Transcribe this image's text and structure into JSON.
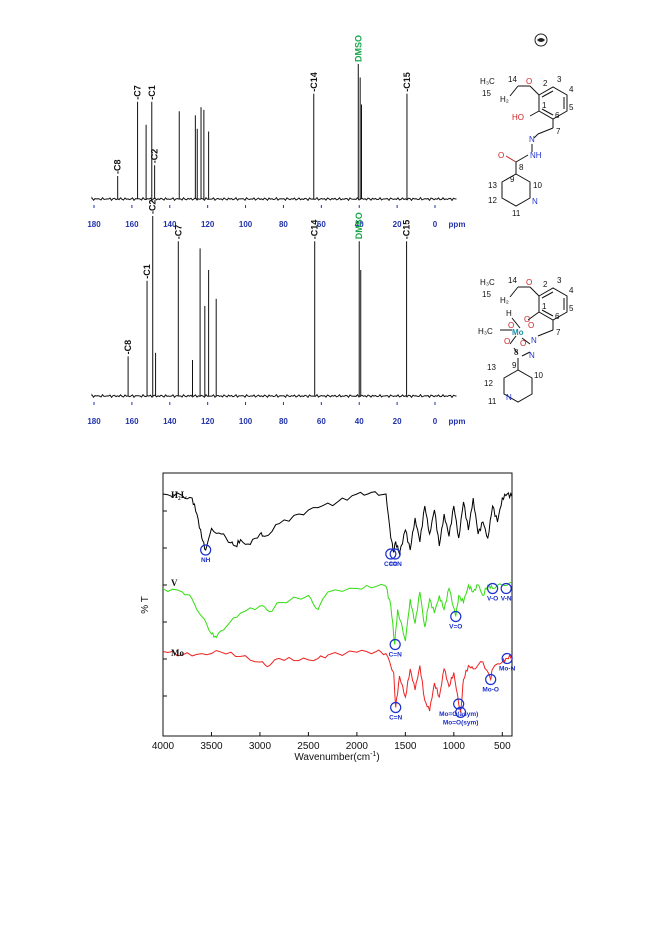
{
  "page": {
    "corner_icon": "journal-logo-icon"
  },
  "chart_data": [
    {
      "type": "line",
      "id": "nmr_ligand",
      "xlabel": "ppm",
      "xlim": [
        180,
        0
      ],
      "x_ticks": [
        "180",
        "160",
        "140",
        "120",
        "100",
        "80",
        "60",
        "40",
        "20",
        "0"
      ],
      "peaks": [
        {
          "ppm": 167.5,
          "h": 0.17,
          "label": "C8"
        },
        {
          "ppm": 157.0,
          "h": 0.72,
          "label": "C7"
        },
        {
          "ppm": 152.5,
          "h": 0.55,
          "label": ""
        },
        {
          "ppm": 149.5,
          "h": 0.72,
          "label": "C1"
        },
        {
          "ppm": 148.0,
          "h": 0.25,
          "label": "C2"
        },
        {
          "ppm": 135.0,
          "h": 0.65,
          "label": ""
        },
        {
          "ppm": 126.5,
          "h": 0.62,
          "label": ""
        },
        {
          "ppm": 125.5,
          "h": 0.52,
          "label": ""
        },
        {
          "ppm": 123.5,
          "h": 0.68,
          "label": ""
        },
        {
          "ppm": 122.0,
          "h": 0.66,
          "label": ""
        },
        {
          "ppm": 119.5,
          "h": 0.5,
          "label": ""
        },
        {
          "ppm": 64.0,
          "h": 0.78,
          "label": "C14"
        },
        {
          "ppm": 40.5,
          "h": 1.0,
          "label": "DMSO"
        },
        {
          "ppm": 39.5,
          "h": 0.9,
          "label": ""
        },
        {
          "ppm": 38.8,
          "h": 0.7,
          "label": ""
        },
        {
          "ppm": 14.8,
          "h": 0.78,
          "label": "C15"
        }
      ]
    },
    {
      "type": "line",
      "id": "nmr_complex",
      "xlabel": "ppm",
      "xlim": [
        180,
        0
      ],
      "x_ticks": [
        "180",
        "160",
        "140",
        "120",
        "100",
        "80",
        "60",
        "40",
        "20",
        "0"
      ],
      "peaks": [
        {
          "ppm": 162.0,
          "h": 0.22,
          "label": "C8"
        },
        {
          "ppm": 152.0,
          "h": 0.64,
          "label": "C1"
        },
        {
          "ppm": 149.0,
          "h": 1.0,
          "label": "C2"
        },
        {
          "ppm": 147.5,
          "h": 0.24,
          "label": ""
        },
        {
          "ppm": 135.5,
          "h": 0.86,
          "label": "C7"
        },
        {
          "ppm": 128.0,
          "h": 0.2,
          "label": ""
        },
        {
          "ppm": 124.0,
          "h": 0.82,
          "label": ""
        },
        {
          "ppm": 121.5,
          "h": 0.5,
          "label": ""
        },
        {
          "ppm": 119.5,
          "h": 0.7,
          "label": ""
        },
        {
          "ppm": 115.5,
          "h": 0.54,
          "label": ""
        },
        {
          "ppm": 63.5,
          "h": 0.86,
          "label": "C14"
        },
        {
          "ppm": 40.0,
          "h": 0.86,
          "label": "DMSO"
        },
        {
          "ppm": 39.2,
          "h": 0.7,
          "label": ""
        },
        {
          "ppm": 15.0,
          "h": 0.86,
          "label": "C15"
        }
      ]
    },
    {
      "type": "line",
      "id": "ir_spectra",
      "xlabel": "Wavenumber(cm",
      "xlabel_sup": "-1",
      "xlabel_end": ")",
      "ylabel": "% T",
      "xlim": [
        4000,
        400
      ],
      "x_ticks": [
        "4000",
        "3500",
        "3000",
        "2500",
        "2000",
        "1500",
        "1000",
        "500"
      ],
      "series": [
        {
          "name": "H₂L",
          "color": "#000000",
          "points": [
            [
              4000,
              0.05
            ],
            [
              3800,
              0.07
            ],
            [
              3700,
              0.1
            ],
            [
              3650,
              0.3
            ],
            [
              3600,
              0.6
            ],
            [
              3560,
              0.75
            ],
            [
              3500,
              0.48
            ],
            [
              3400,
              0.55
            ],
            [
              3300,
              0.66
            ],
            [
              3250,
              0.7
            ],
            [
              3200,
              0.62
            ],
            [
              3100,
              0.68
            ],
            [
              3000,
              0.55
            ],
            [
              2950,
              0.58
            ],
            [
              2800,
              0.42
            ],
            [
              2600,
              0.3
            ],
            [
              2400,
              0.22
            ],
            [
              2200,
              0.15
            ],
            [
              2000,
              0.05
            ],
            [
              1850,
              0.03
            ],
            [
              1700,
              0.05
            ],
            [
              1650,
              0.6
            ],
            [
              1620,
              0.78
            ],
            [
              1600,
              0.65
            ],
            [
              1560,
              0.8
            ],
            [
              1500,
              0.5
            ],
            [
              1450,
              0.75
            ],
            [
              1400,
              0.35
            ],
            [
              1350,
              0.65
            ],
            [
              1300,
              0.2
            ],
            [
              1250,
              0.55
            ],
            [
              1200,
              0.25
            ],
            [
              1150,
              0.7
            ],
            [
              1100,
              0.3
            ],
            [
              1050,
              0.58
            ],
            [
              1000,
              0.2
            ],
            [
              950,
              0.6
            ],
            [
              900,
              0.15
            ],
            [
              850,
              0.5
            ],
            [
              800,
              0.1
            ],
            [
              750,
              0.55
            ],
            [
              700,
              0.4
            ],
            [
              650,
              0.6
            ],
            [
              600,
              0.2
            ],
            [
              550,
              0.4
            ],
            [
              500,
              0.1
            ],
            [
              450,
              0.05
            ],
            [
              400,
              0.08
            ]
          ],
          "annotations": [
            {
              "label": "NH",
              "x": 3560,
              "y": 0.75
            },
            {
              "label": "C=O",
              "x": 1650,
              "y": 0.8
            },
            {
              "label": "C=N",
              "x": 1605,
              "y": 0.8
            }
          ]
        },
        {
          "name": "V",
          "color": "#33dd11",
          "points": [
            [
              4000,
              0.15
            ],
            [
              3800,
              0.2
            ],
            [
              3700,
              0.3
            ],
            [
              3600,
              0.55
            ],
            [
              3500,
              0.8
            ],
            [
              3450,
              0.85
            ],
            [
              3350,
              0.7
            ],
            [
              3200,
              0.5
            ],
            [
              3000,
              0.4
            ],
            [
              2900,
              0.48
            ],
            [
              2800,
              0.35
            ],
            [
              2500,
              0.25
            ],
            [
              2400,
              0.45
            ],
            [
              2300,
              0.2
            ],
            [
              2000,
              0.15
            ],
            [
              1800,
              0.12
            ],
            [
              1700,
              0.12
            ],
            [
              1650,
              0.4
            ],
            [
              1610,
              0.95
            ],
            [
              1580,
              0.45
            ],
            [
              1500,
              0.9
            ],
            [
              1450,
              0.3
            ],
            [
              1400,
              0.65
            ],
            [
              1350,
              0.2
            ],
            [
              1300,
              0.7
            ],
            [
              1250,
              0.3
            ],
            [
              1200,
              0.5
            ],
            [
              1150,
              0.25
            ],
            [
              1100,
              0.45
            ],
            [
              1050,
              0.15
            ],
            [
              980,
              0.55
            ],
            [
              950,
              0.25
            ],
            [
              900,
              0.35
            ],
            [
              850,
              0.1
            ],
            [
              800,
              0.2
            ],
            [
              750,
              0.1
            ],
            [
              700,
              0.25
            ],
            [
              650,
              0.1
            ],
            [
              600,
              0.15
            ],
            [
              500,
              0.1
            ],
            [
              400,
              0.05
            ]
          ],
          "annotations": [
            {
              "label": "C=N",
              "x": 1605,
              "y": 0.95
            },
            {
              "label": "V=O",
              "x": 980,
              "y": 0.55
            },
            {
              "label": "V-O",
              "x": 600,
              "y": 0.15
            },
            {
              "label": "V-N",
              "x": 460,
              "y": 0.15
            }
          ]
        },
        {
          "name": "Mo",
          "color": "#ee2222",
          "points": [
            [
              4000,
              0.05
            ],
            [
              3800,
              0.1
            ],
            [
              3600,
              0.08
            ],
            [
              3400,
              0.06
            ],
            [
              3200,
              0.12
            ],
            [
              3000,
              0.2
            ],
            [
              2900,
              0.25
            ],
            [
              2800,
              0.15
            ],
            [
              2600,
              0.18
            ],
            [
              2400,
              0.15
            ],
            [
              2300,
              0.1
            ],
            [
              2000,
              0.06
            ],
            [
              1800,
              0.05
            ],
            [
              1700,
              0.08
            ],
            [
              1620,
              0.35
            ],
            [
              1600,
              0.85
            ],
            [
              1560,
              0.4
            ],
            [
              1500,
              0.7
            ],
            [
              1450,
              0.3
            ],
            [
              1400,
              0.6
            ],
            [
              1350,
              0.25
            ],
            [
              1300,
              0.75
            ],
            [
              1250,
              0.9
            ],
            [
              1200,
              0.5
            ],
            [
              1150,
              0.7
            ],
            [
              1100,
              0.3
            ],
            [
              1050,
              0.55
            ],
            [
              1000,
              0.35
            ],
            [
              950,
              0.8
            ],
            [
              930,
              0.92
            ],
            [
              900,
              0.45
            ],
            [
              850,
              0.25
            ],
            [
              800,
              0.3
            ],
            [
              700,
              0.2
            ],
            [
              620,
              0.45
            ],
            [
              600,
              0.3
            ],
            [
              500,
              0.2
            ],
            [
              450,
              0.15
            ],
            [
              400,
              0.1
            ]
          ],
          "annotations": [
            {
              "label": "C=N",
              "x": 1600,
              "y": 0.85
            },
            {
              "label": "Mo=O(asym)",
              "x": 950,
              "y": 0.8
            },
            {
              "label": "Mo=O(sym)",
              "x": 930,
              "y": 0.92
            },
            {
              "label": "Mo-O",
              "x": 620,
              "y": 0.45
            },
            {
              "label": "Mo-N",
              "x": 450,
              "y": 0.15
            }
          ]
        }
      ]
    }
  ],
  "structures": [
    {
      "id": "ligand",
      "labels": [
        "H₃C",
        "14",
        "15",
        "H₂",
        "O",
        "2",
        "3",
        "4",
        "5",
        "6",
        "1",
        "HO",
        "7",
        "N",
        "NH",
        "O",
        "8",
        "9",
        "10",
        "13",
        "12",
        "N",
        "11"
      ]
    },
    {
      "id": "complex",
      "labels": [
        "H₃C",
        "14",
        "15",
        "H₂",
        "O",
        "2",
        "3",
        "4",
        "5",
        "6",
        "1",
        "O",
        "H",
        "O",
        "H₃C",
        "Mo",
        "O",
        "O",
        "N",
        "7",
        "O",
        "8",
        "N",
        "9",
        "13",
        "12",
        "N",
        "11",
        "10"
      ]
    }
  ]
}
